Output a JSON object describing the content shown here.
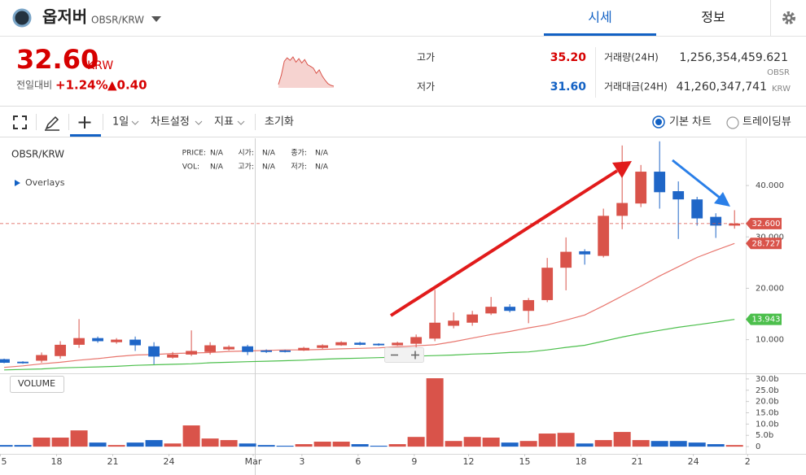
{
  "header": {
    "name": "옵저버",
    "pair": "OBSR/KRW",
    "tabs": [
      "시세",
      "정보"
    ]
  },
  "ticker": {
    "price": "32.60",
    "currency": "KRW",
    "change_label": "전일대비",
    "change_pct": "+1.24%",
    "change_abs": "▲0.40",
    "high_label": "고가",
    "high": "35.20",
    "low_label": "저가",
    "low": "31.60",
    "volume_label": "거래량(24H)",
    "volume": "1,256,354,459.621",
    "volume_unit": "OBSR",
    "value_label": "거래대금(24H)",
    "value": "41,260,347,741",
    "value_unit": "KRW",
    "sparkline": [
      31.9,
      33.0,
      34.6,
      35.0,
      34.7,
      35.1,
      34.5,
      34.9,
      34.4,
      34.8,
      34.2,
      34.0,
      33.8,
      33.2,
      33.6,
      32.9,
      32.4,
      32.0,
      31.8,
      31.7
    ]
  },
  "toolbar": {
    "interval": "1일",
    "settings": "차트설정",
    "indicators": "지표",
    "reset": "초기화",
    "modes": [
      "기본 차트",
      "트레이딩뷰"
    ]
  },
  "chart_data": {
    "type": "candlestick",
    "title": "OBSR/KRW",
    "overlays": "Overlays",
    "info": [
      {
        "label": "PRICE:",
        "value": "N/A"
      },
      {
        "label": "시가:",
        "value": "N/A"
      },
      {
        "label": "종가:",
        "value": "N/A"
      },
      {
        "label": "VOL:",
        "value": "N/A"
      },
      {
        "label": "고가:",
        "value": "N/A"
      },
      {
        "label": "저가:",
        "value": "N/A"
      }
    ],
    "up_color": "#d9534a",
    "down_color": "#1f66c7",
    "open": [
      6.2,
      5.7,
      5.9,
      6.8,
      9.0,
      10.3,
      9.5,
      10.0,
      8.7,
      6.5,
      7.1,
      7.6,
      8.1,
      8.7,
      7.9,
      7.9,
      7.9,
      8.4,
      8.9,
      9.4,
      9.2,
      8.9,
      9.2,
      10.2,
      12.7,
      13.3,
      15.1,
      16.4,
      15.6,
      17.7,
      24.0,
      27.2,
      26.3,
      34.1,
      36.5,
      42.7,
      38.9,
      37.3,
      33.9,
      32.2
    ],
    "high": [
      6.3,
      5.8,
      7.5,
      9.7,
      14.0,
      10.6,
      10.3,
      10.6,
      9.5,
      7.6,
      11.8,
      9.5,
      8.9,
      9.0,
      8.1,
      8.0,
      8.6,
      9.1,
      9.7,
      9.6,
      9.3,
      9.6,
      11.0,
      19.7,
      15.3,
      15.6,
      18.3,
      16.9,
      18.1,
      25.9,
      29.9,
      27.6,
      35.5,
      47.8,
      44.0,
      48.6,
      40.8,
      37.8,
      34.6,
      35.2
    ],
    "low": [
      5.4,
      5.3,
      5.5,
      6.3,
      8.4,
      9.4,
      9.2,
      7.8,
      5.2,
      6.3,
      6.8,
      7.1,
      7.9,
      7.0,
      7.4,
      7.5,
      7.8,
      8.2,
      8.8,
      8.9,
      8.8,
      8.8,
      8.4,
      9.7,
      12.2,
      12.7,
      14.8,
      15.3,
      13.2,
      17.3,
      19.6,
      24.6,
      26.0,
      31.5,
      35.8,
      35.5,
      29.6,
      32.2,
      29.8,
      31.6
    ],
    "close": [
      5.5,
      5.4,
      7.0,
      9.0,
      10.3,
      9.7,
      10.0,
      8.9,
      6.7,
      7.1,
      7.8,
      8.9,
      8.6,
      7.6,
      7.6,
      7.6,
      8.4,
      8.9,
      9.5,
      9.0,
      8.9,
      9.4,
      10.5,
      13.3,
      13.7,
      14.9,
      16.4,
      15.6,
      17.7,
      24.0,
      27.1,
      26.6,
      34.1,
      36.6,
      42.7,
      38.7,
      37.3,
      33.6,
      32.2,
      32.6
    ],
    "moving_averages": [
      {
        "color": "#e8766e",
        "values": [
          4.6,
          4.9,
          5.3,
          5.6,
          6.0,
          6.3,
          6.7,
          7.0,
          7.1,
          7.3,
          7.4,
          7.5,
          7.7,
          7.8,
          7.9,
          8.0,
          8.0,
          8.1,
          8.2,
          8.3,
          8.4,
          8.6,
          8.8,
          9.0,
          9.6,
          10.3,
          11.0,
          11.6,
          12.3,
          12.9,
          13.8,
          14.8,
          16.6,
          18.5,
          20.4,
          22.4,
          24.2,
          26.0,
          27.4,
          28.727
        ]
      },
      {
        "color": "#4cbf4c",
        "values": [
          4.1,
          4.2,
          4.3,
          4.5,
          4.6,
          4.7,
          4.8,
          5.0,
          5.1,
          5.2,
          5.3,
          5.5,
          5.6,
          5.7,
          5.8,
          5.9,
          6.0,
          6.2,
          6.3,
          6.4,
          6.5,
          6.6,
          6.8,
          6.9,
          7.0,
          7.2,
          7.3,
          7.5,
          7.6,
          8.0,
          8.5,
          8.9,
          9.7,
          10.5,
          11.2,
          11.8,
          12.4,
          12.9,
          13.4,
          13.943
        ]
      }
    ],
    "price_tags": [
      {
        "value": 32.6,
        "label": "32.600",
        "color": "#d9534a",
        "dashed": true
      },
      {
        "value": 28.727,
        "label": "28.727",
        "color": "#d9534a"
      },
      {
        "value": 13.943,
        "label": "13.943",
        "color": "#4cbf4c"
      }
    ],
    "xlim": [
      -0.22,
      39.6
    ],
    "xticks": [
      {
        "value": -0.2,
        "label": "5"
      },
      {
        "value": 2.8,
        "label": "18"
      },
      {
        "value": 5.8,
        "label": "21"
      },
      {
        "value": 8.8,
        "label": "24"
      },
      {
        "value": 13.3,
        "label": "Mar"
      },
      {
        "value": 15.9,
        "label": "3"
      },
      {
        "value": 18.9,
        "label": "6"
      },
      {
        "value": 21.9,
        "label": "9"
      },
      {
        "value": 24.8,
        "label": "12"
      },
      {
        "value": 27.8,
        "label": "15"
      },
      {
        "value": 30.8,
        "label": "18"
      },
      {
        "value": 33.8,
        "label": "21"
      },
      {
        "value": 36.8,
        "label": "24"
      },
      {
        "value": 39.7,
        "label": "2"
      }
    ],
    "ylim": [
      3.6,
      49.2
    ],
    "yticks": [
      {
        "value": 10,
        "label": "10.000"
      },
      {
        "value": 20,
        "label": "20.000"
      },
      {
        "value": 30,
        "label": "30.000"
      },
      {
        "value": 40,
        "label": "40.000"
      }
    ],
    "volume": {
      "label": "VOLUME",
      "values": [
        0.7,
        0.7,
        4.0,
        4.0,
        7.2,
        1.8,
        0.7,
        1.8,
        2.9,
        1.4,
        9.4,
        3.6,
        2.9,
        1.4,
        0.7,
        0.4,
        1.1,
        2.2,
        2.2,
        1.1,
        0.4,
        1.1,
        4.3,
        30.3,
        2.5,
        4.3,
        4.0,
        1.8,
        2.5,
        5.8,
        6.1,
        1.4,
        2.9,
        6.5,
        2.9,
        2.5,
        2.5,
        1.8,
        1.1,
        0.7
      ],
      "ylim": [
        -3.2,
        31.4
      ],
      "yticks": [
        0,
        {
          "value": 5,
          "label": "5.0b"
        },
        {
          "value": 10,
          "label": "10.0b"
        },
        {
          "value": 15,
          "label": "15.0b"
        },
        {
          "value": 20,
          "label": "20.0b"
        },
        {
          "value": 25,
          "label": "25.0b"
        },
        {
          "value": 30,
          "label": "30.0b"
        }
      ]
    }
  }
}
